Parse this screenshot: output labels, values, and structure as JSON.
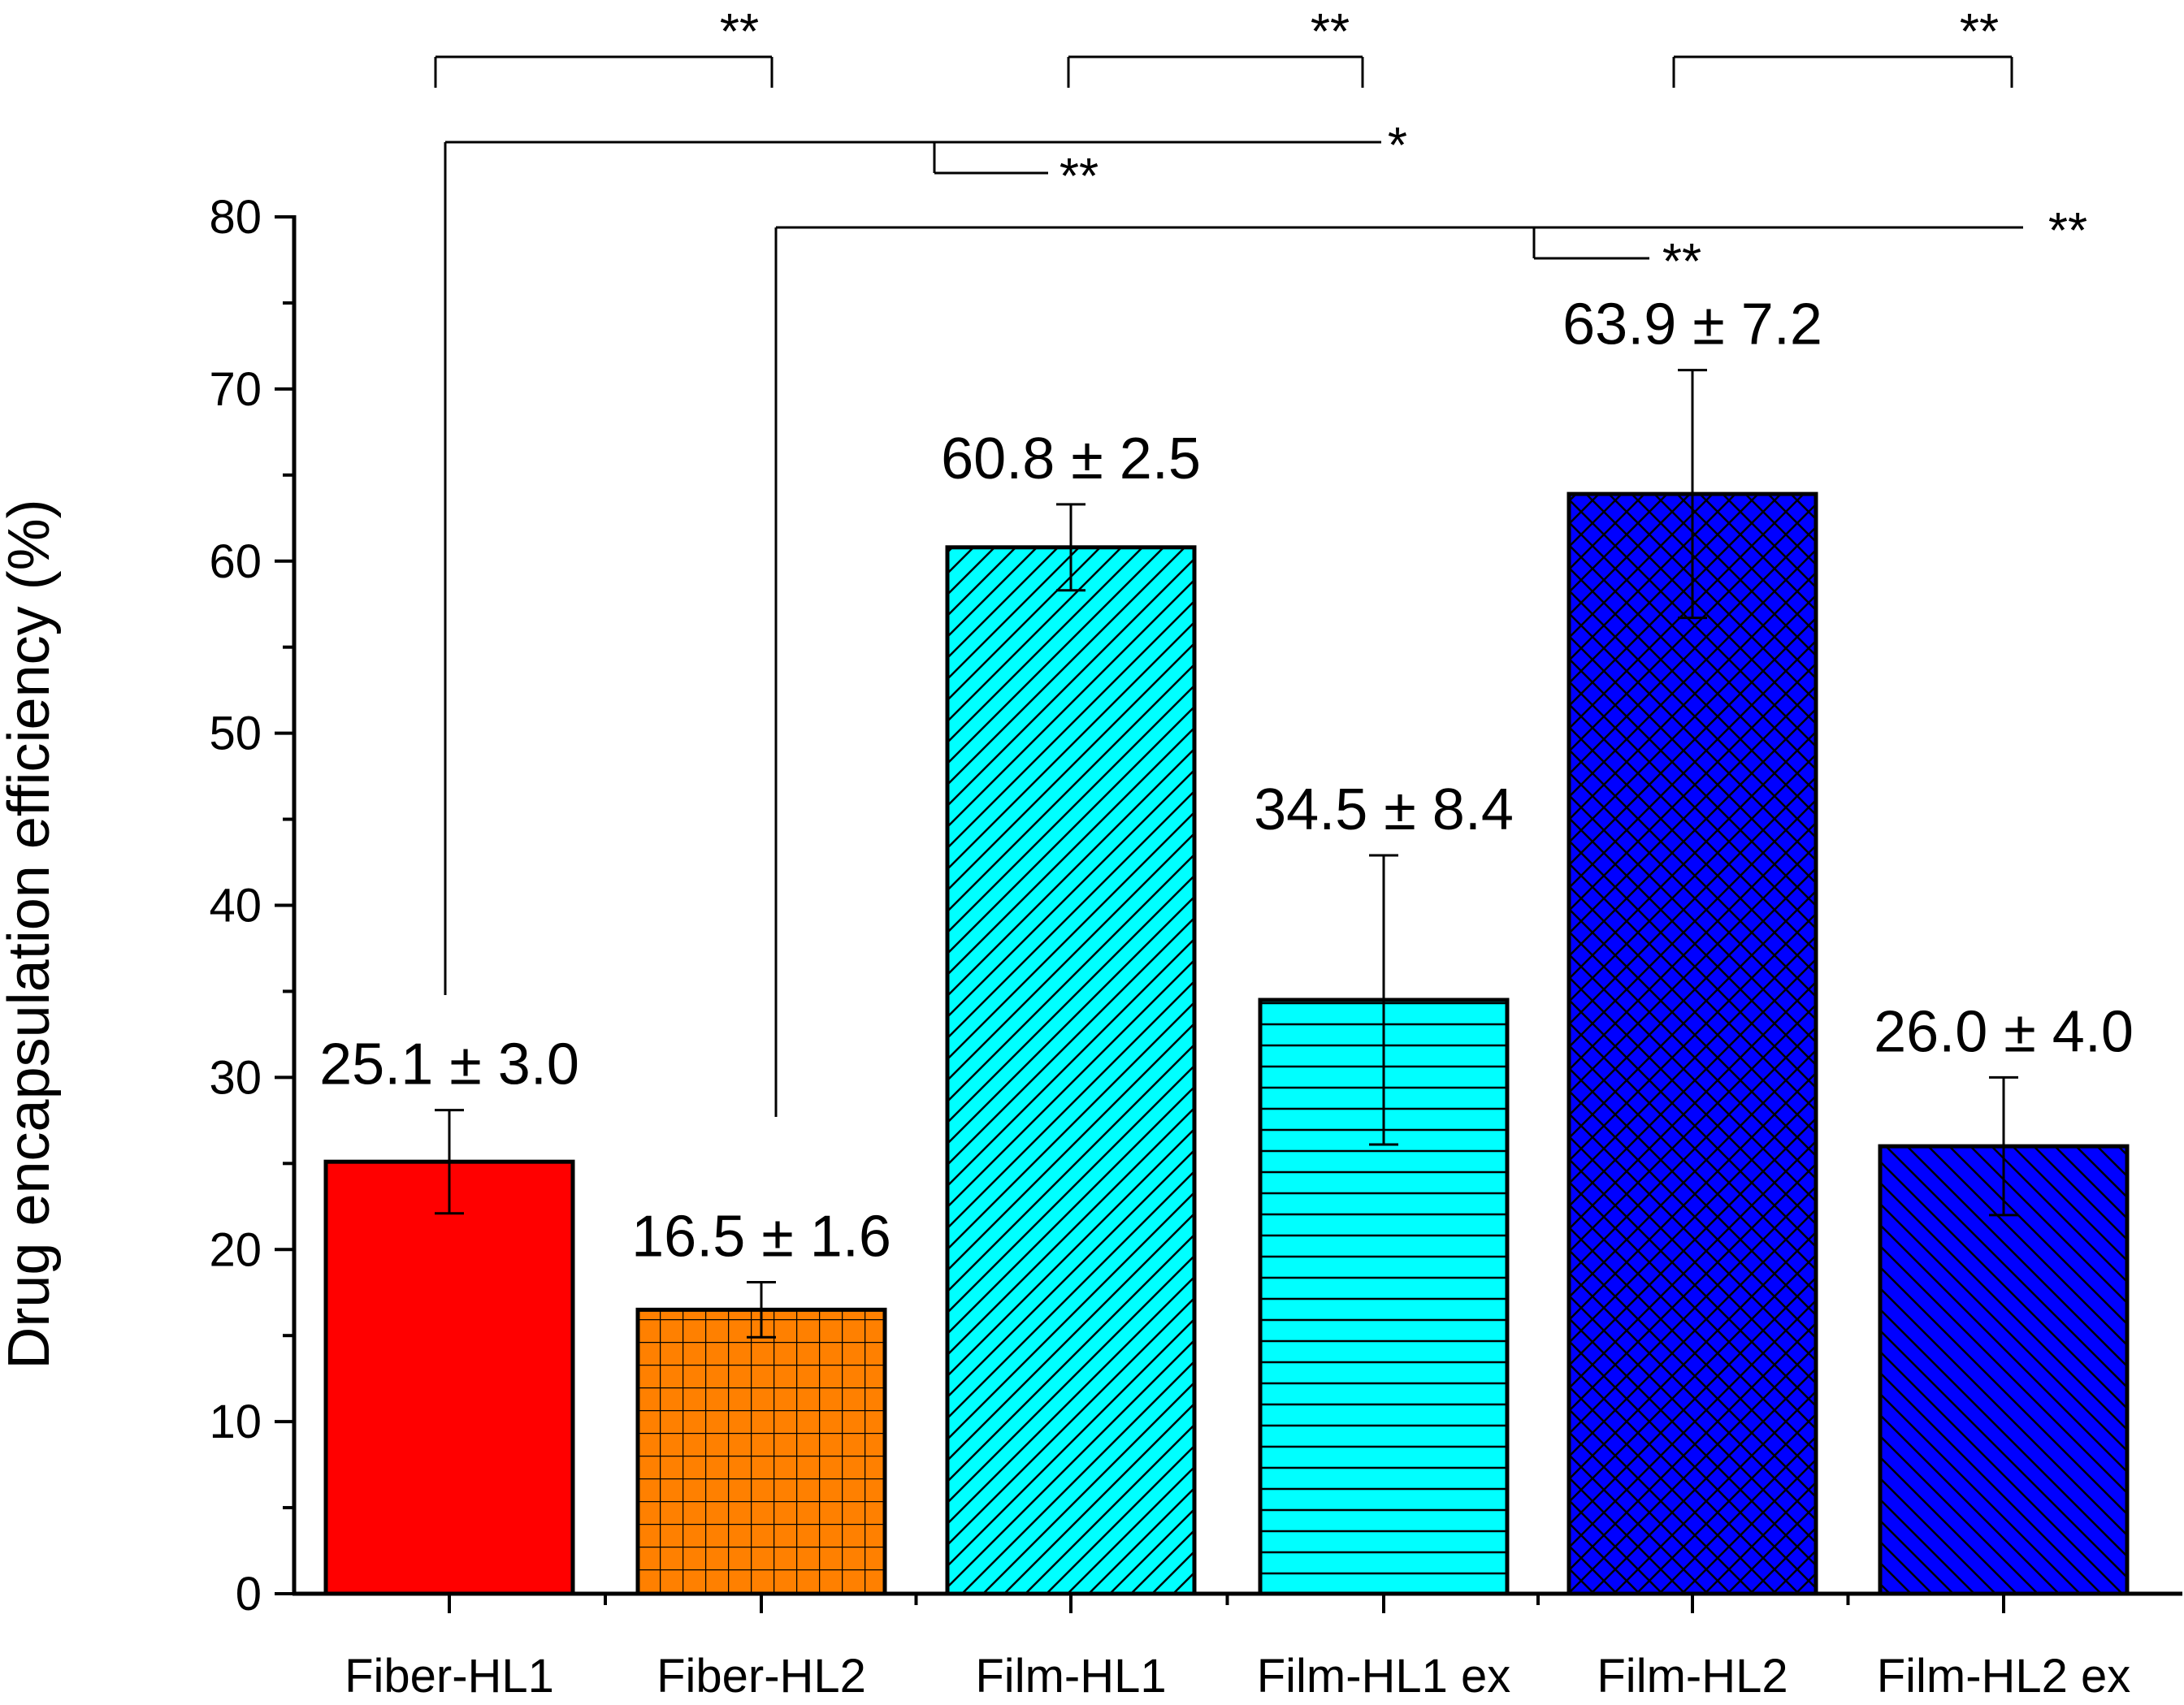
{
  "chart_data": {
    "type": "bar",
    "title": "",
    "xlabel": "",
    "ylabel": "Drug encapsulation efficiency (%)",
    "ylim": [
      0,
      80
    ],
    "yticks": [
      "0",
      "10",
      "20",
      "30",
      "40",
      "50",
      "60",
      "70",
      "80"
    ],
    "categories": [
      "Fiber-HL1",
      "Fiber-HL2",
      "Film-HL1",
      "Film-HL1 ex",
      "Film-HL2",
      "Film-HL2 ex"
    ],
    "values": [
      25.1,
      16.5,
      60.8,
      34.5,
      63.9,
      26.0
    ],
    "errors": [
      3.0,
      1.6,
      2.5,
      8.4,
      7.2,
      4.0
    ],
    "labels": [
      "25.1 ± 3.0",
      "16.5 ± 1.6",
      "60.8 ± 2.5",
      "34.5 ± 8.4",
      "63.9 ± 7.2",
      "26.0 ± 4.0"
    ],
    "colors": [
      "#ff0000",
      "#ff8000",
      "#00ffff",
      "#00ffff",
      "#0000ff",
      "#0000ff"
    ],
    "patterns": [
      "solid",
      "grid",
      "diagonal",
      "horizontal",
      "crosshatch",
      "back-diagonal"
    ],
    "significance": [
      {
        "from": "Fiber-HL1",
        "to": "Fiber-HL2",
        "label": "**"
      },
      {
        "from": "Film-HL1",
        "to": "Film-HL1 ex",
        "label": "**"
      },
      {
        "from": "Film-HL2",
        "to": "Film-HL2 ex",
        "label": "**"
      },
      {
        "from": "Fiber-HL1",
        "to": "Film-HL1 ex",
        "label": "*"
      },
      {
        "from": "Fiber-HL1",
        "to": "Film-HL1",
        "label": "**"
      },
      {
        "from": "Fiber-HL2",
        "to": "Film-HL2 ex",
        "label": "**"
      },
      {
        "from": "Fiber-HL2",
        "to": "Film-HL2",
        "label": "**"
      }
    ]
  }
}
